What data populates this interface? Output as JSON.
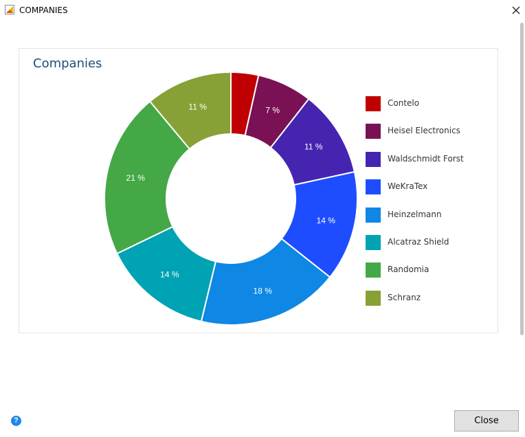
{
  "window": {
    "title": "COMPANIES",
    "close_glyph": "✕",
    "app_icon": "chart-document-icon"
  },
  "footer": {
    "help_glyph": "?",
    "close_label": "Close"
  },
  "chart_data": {
    "type": "pie",
    "title": "Companies",
    "donut": true,
    "legend_position": "right",
    "slices": [
      {
        "label": "Contelo",
        "percent": 3.5,
        "percent_label": "",
        "color": "#c00000"
      },
      {
        "label": "Heisel Electronics",
        "percent": 7,
        "percent_label": "7 %",
        "color": "#7b1155"
      },
      {
        "label": "Waldschmidt Forst",
        "percent": 11,
        "percent_label": "11 %",
        "color": "#4525b0"
      },
      {
        "label": "WeKraTex",
        "percent": 14,
        "percent_label": "14 %",
        "color": "#1e4dff"
      },
      {
        "label": "Heinzelmann",
        "percent": 18,
        "percent_label": "18 %",
        "color": "#0e87e5"
      },
      {
        "label": "Alcatraz Shield",
        "percent": 14,
        "percent_label": "14 %",
        "color": "#00a3b3"
      },
      {
        "label": "Randomia",
        "percent": 21,
        "percent_label": "21 %",
        "color": "#44a846"
      },
      {
        "label": "Schranz",
        "percent": 11,
        "percent_label": "11 %",
        "color": "#87a136"
      }
    ]
  }
}
